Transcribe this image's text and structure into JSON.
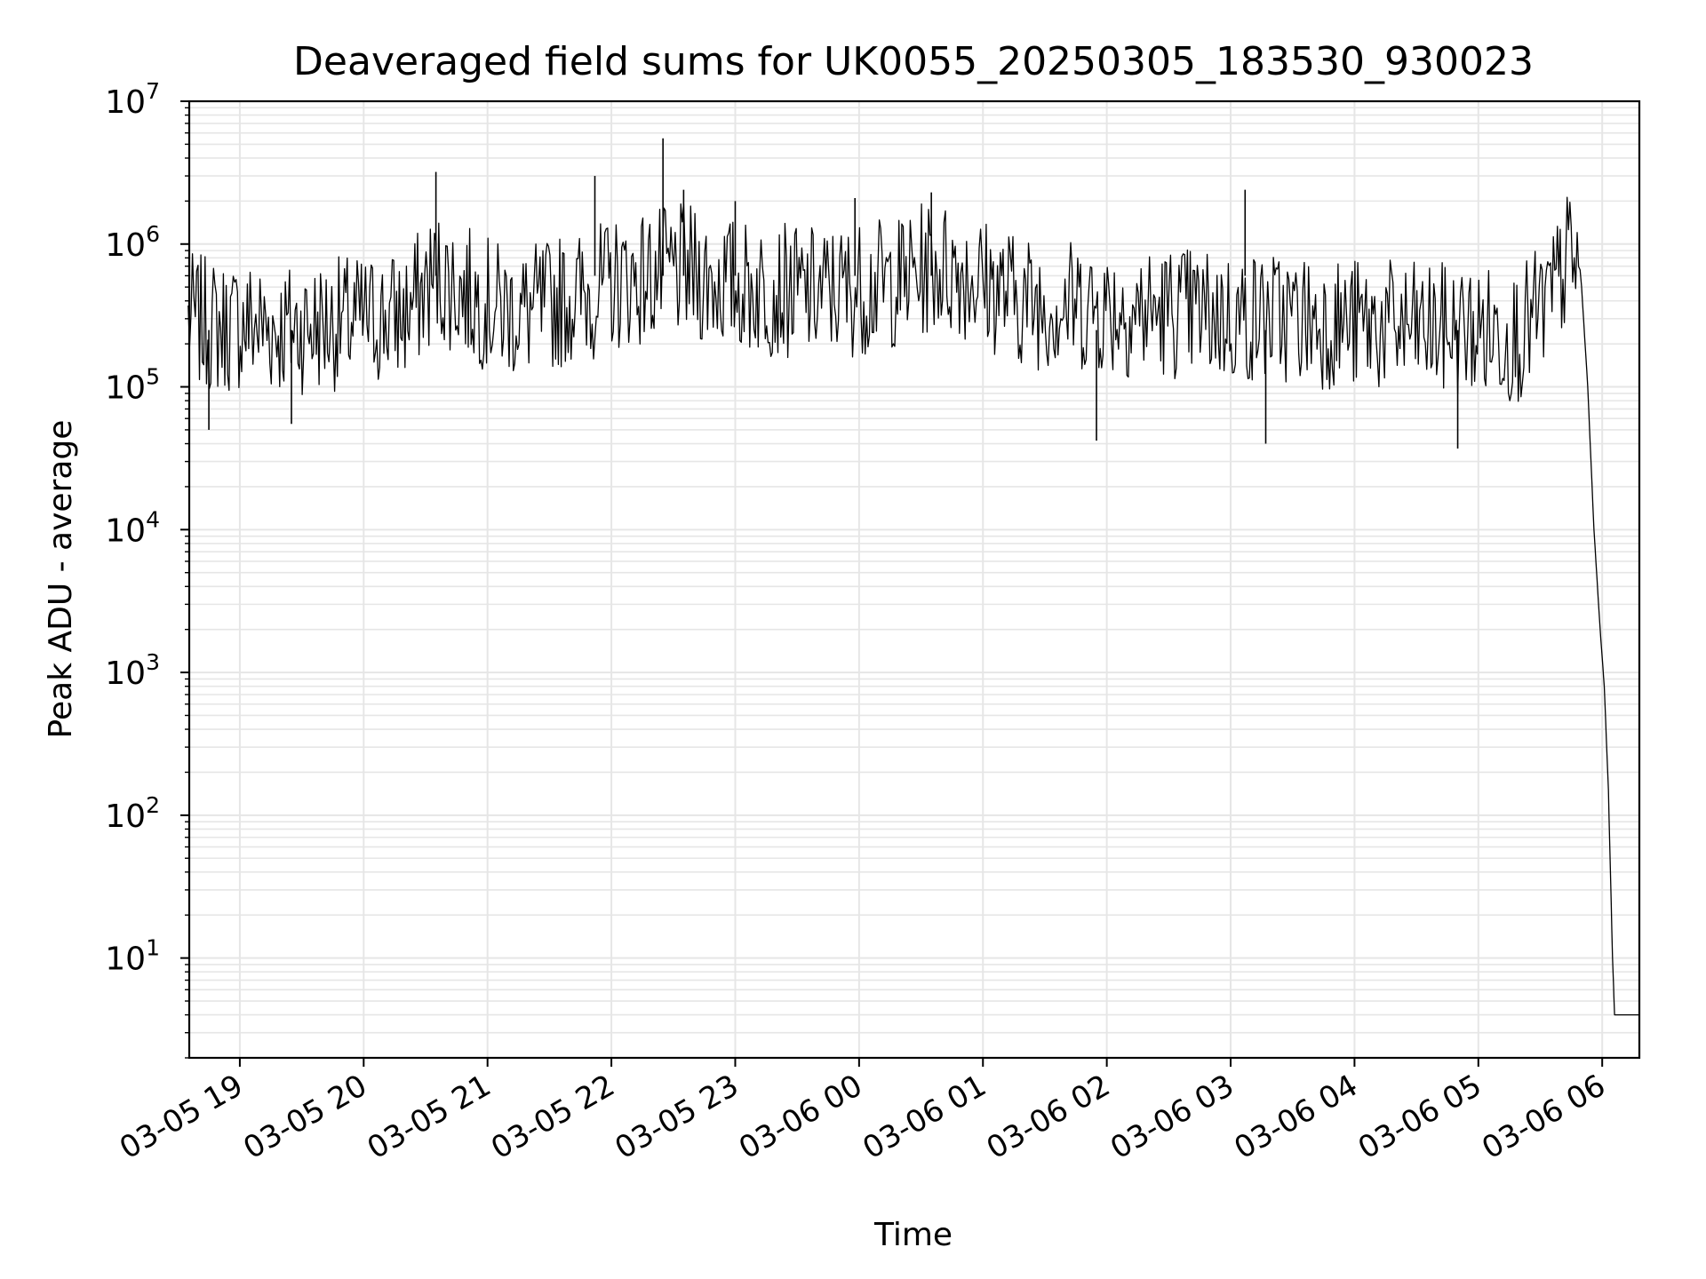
{
  "chart_data": {
    "type": "line",
    "title": "Deaveraged field sums for UK0055_20250305_183530_930023",
    "xlabel": "Time",
    "ylabel": "Peak ADU - average",
    "yscale": "log",
    "ylim": [
      2,
      10000000
    ],
    "xlim": [
      "2025-03-05 18:35:30",
      "2025-03-06 06:18:00"
    ],
    "grid": true,
    "line_color": "#000000",
    "grid_color": "#e6e6e6",
    "x_tick_labels": [
      "03-05 19",
      "03-05 20",
      "03-05 21",
      "03-05 22",
      "03-05 23",
      "03-06 00",
      "03-06 01",
      "03-06 02",
      "03-06 03",
      "03-06 04",
      "03-06 05",
      "03-06 06"
    ],
    "y_tick_labels": [
      {
        "base": "10",
        "exp": "1"
      },
      {
        "base": "10",
        "exp": "2"
      },
      {
        "base": "10",
        "exp": "3"
      },
      {
        "base": "10",
        "exp": "4"
      },
      {
        "base": "10",
        "exp": "5"
      },
      {
        "base": "10",
        "exp": "6"
      },
      {
        "base": "10",
        "exp": "7"
      }
    ],
    "series": [
      {
        "x": [
          "2025-03-05 18:35",
          "2025-03-05 18:50",
          "2025-03-05 19:05",
          "2025-03-05 19:20",
          "2025-03-05 19:35",
          "2025-03-05 19:50",
          "2025-03-05 20:05",
          "2025-03-05 20:20",
          "2025-03-05 20:35",
          "2025-03-05 20:50",
          "2025-03-05 21:05",
          "2025-03-05 21:20",
          "2025-03-05 21:35",
          "2025-03-05 21:50",
          "2025-03-05 22:05",
          "2025-03-05 22:20",
          "2025-03-05 22:35",
          "2025-03-05 22:50",
          "2025-03-05 23:05",
          "2025-03-05 23:20",
          "2025-03-05 23:35",
          "2025-03-05 23:50",
          "2025-03-06 00:05",
          "2025-03-06 00:20",
          "2025-03-06 00:35",
          "2025-03-06 00:50",
          "2025-03-06 01:05",
          "2025-03-06 01:20",
          "2025-03-06 01:35",
          "2025-03-06 01:50",
          "2025-03-06 02:05",
          "2025-03-06 02:20",
          "2025-03-06 02:35",
          "2025-03-06 02:50",
          "2025-03-06 03:05",
          "2025-03-06 03:20",
          "2025-03-06 03:35",
          "2025-03-06 03:50",
          "2025-03-06 04:05",
          "2025-03-06 04:20",
          "2025-03-06 04:35",
          "2025-03-06 04:50",
          "2025-03-06 05:05",
          "2025-03-06 05:20",
          "2025-03-06 05:35",
          "2025-03-06 05:45",
          "2025-03-06 05:50",
          "2025-03-06 05:53",
          "2025-03-06 05:56",
          "2025-03-06 05:59",
          "2025-03-06 06:01",
          "2025-03-06 06:03",
          "2025-03-06 06:05",
          "2025-03-06 06:06",
          "2025-03-06 06:10",
          "2025-03-06 06:18"
        ],
        "y": [
          300000,
          260000,
          280000,
          250000,
          270000,
          280000,
          300000,
          320000,
          600000,
          450000,
          350000,
          330000,
          400000,
          450000,
          550000,
          600000,
          650000,
          550000,
          500000,
          480000,
          450000,
          470000,
          500000,
          550000,
          700000,
          650000,
          500000,
          400000,
          380000,
          370000,
          350000,
          330000,
          340000,
          320000,
          300000,
          310000,
          300000,
          280000,
          270000,
          260000,
          250000,
          250000,
          240000,
          230000,
          400000,
          900000,
          500000,
          100000,
          10000,
          2000,
          800,
          150,
          10,
          4,
          4,
          4
        ],
        "spikes": [
          {
            "x": "2025-03-05 18:45",
            "y": 50000
          },
          {
            "x": "2025-03-05 19:25",
            "y": 55000
          },
          {
            "x": "2025-03-05 20:35",
            "y": 3200000
          },
          {
            "x": "2025-03-05 21:52",
            "y": 3000000
          },
          {
            "x": "2025-03-05 22:25",
            "y": 5500000
          },
          {
            "x": "2025-03-05 22:35",
            "y": 2400000
          },
          {
            "x": "2025-03-05 23:00",
            "y": 2000000
          },
          {
            "x": "2025-03-05 23:58",
            "y": 2100000
          },
          {
            "x": "2025-03-06 00:35",
            "y": 2300000
          },
          {
            "x": "2025-03-06 01:55",
            "y": 42000
          },
          {
            "x": "2025-03-06 03:07",
            "y": 2400000
          },
          {
            "x": "2025-03-06 03:17",
            "y": 40000
          },
          {
            "x": "2025-03-06 04:50",
            "y": 37000
          }
        ]
      }
    ]
  }
}
